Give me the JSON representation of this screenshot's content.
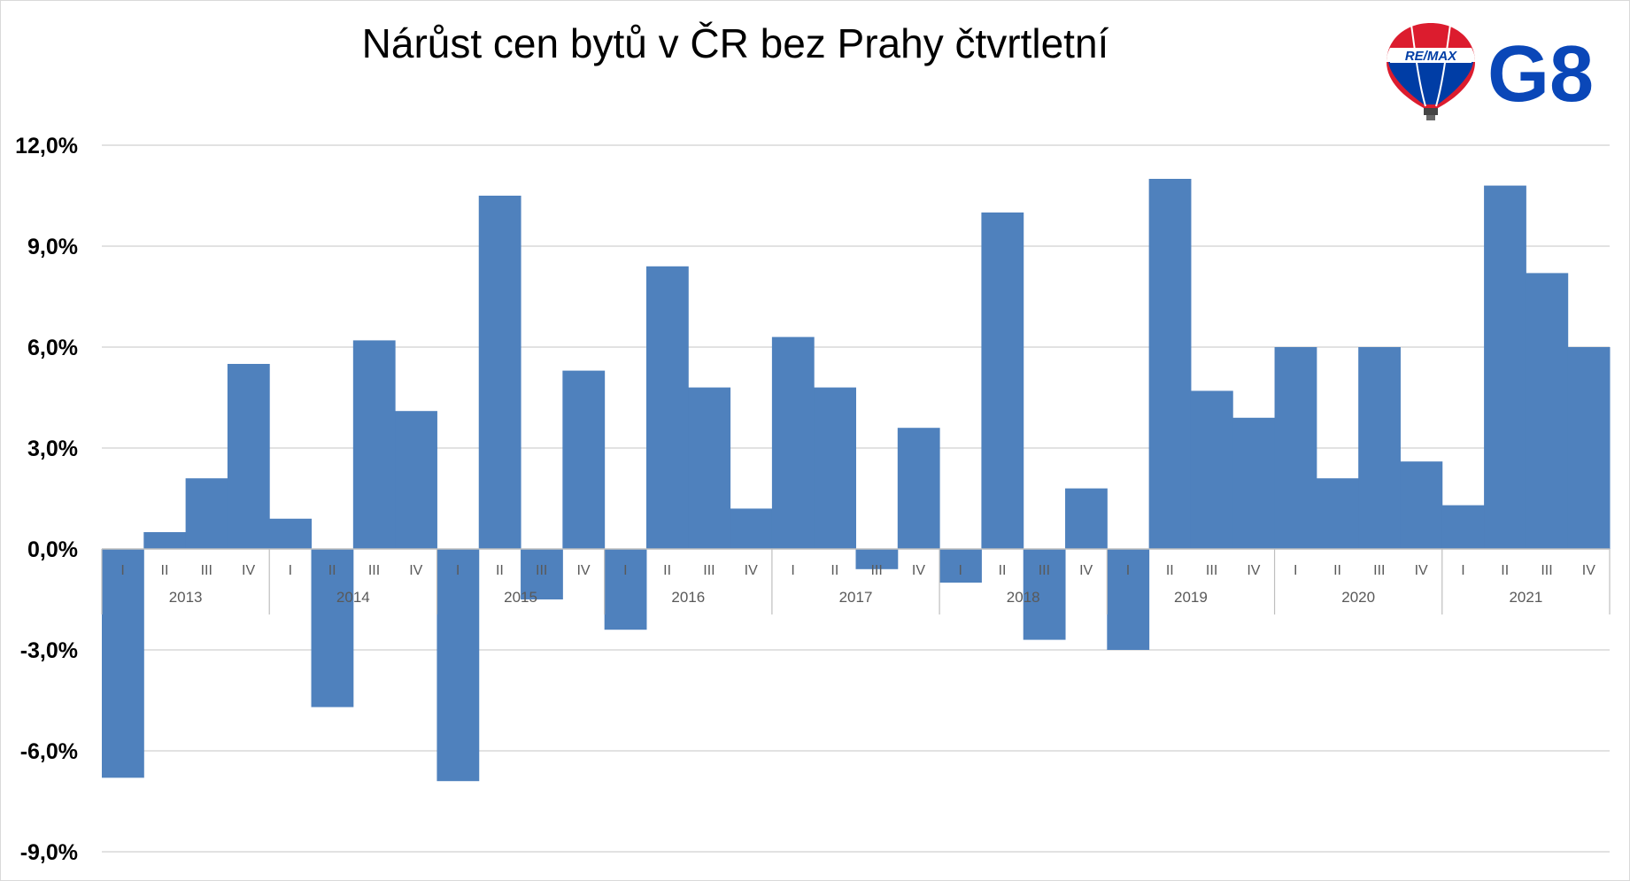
{
  "title": "Nárůst cen bytů v ČR bez Prahy čtvrtletní",
  "logo": {
    "balloon_text": "RE/MAX",
    "brand_text": "G8",
    "colors": {
      "red": "#dc1c2e",
      "blue": "#003da5",
      "brand": "#0a47b8"
    }
  },
  "colors": {
    "bar": "#4f81bd",
    "grid": "#d9d9d9",
    "axis": "#bfbfbf"
  },
  "chart_data": {
    "type": "bar",
    "title": "Nárůst cen bytů v ČR bez Prahy čtvrtletní",
    "ylim": [
      -9.0,
      12.0
    ],
    "yticks": [
      12.0,
      9.0,
      6.0,
      3.0,
      0.0,
      -3.0,
      -6.0,
      -9.0
    ],
    "ytick_labels": [
      "12,0%",
      "9,0%",
      "6,0%",
      "3,0%",
      "0,0%",
      "-3,0%",
      "-6,0%",
      "-9,0%"
    ],
    "grid": true,
    "quarters": [
      "I",
      "II",
      "III",
      "IV"
    ],
    "years": [
      "2013",
      "2014",
      "2015",
      "2016",
      "2017",
      "2018",
      "2019",
      "2020",
      "2021"
    ],
    "values": [
      -6.8,
      0.5,
      2.1,
      5.5,
      0.9,
      -4.7,
      6.2,
      4.1,
      -6.9,
      10.5,
      -1.5,
      5.3,
      -2.4,
      8.4,
      4.8,
      1.2,
      6.3,
      4.8,
      -0.6,
      3.6,
      -1.0,
      10.0,
      -2.7,
      1.8,
      -3.0,
      11.0,
      4.7,
      3.9,
      6.0,
      2.1,
      6.0,
      2.6,
      1.3,
      10.8,
      8.2,
      6.0
    ]
  }
}
